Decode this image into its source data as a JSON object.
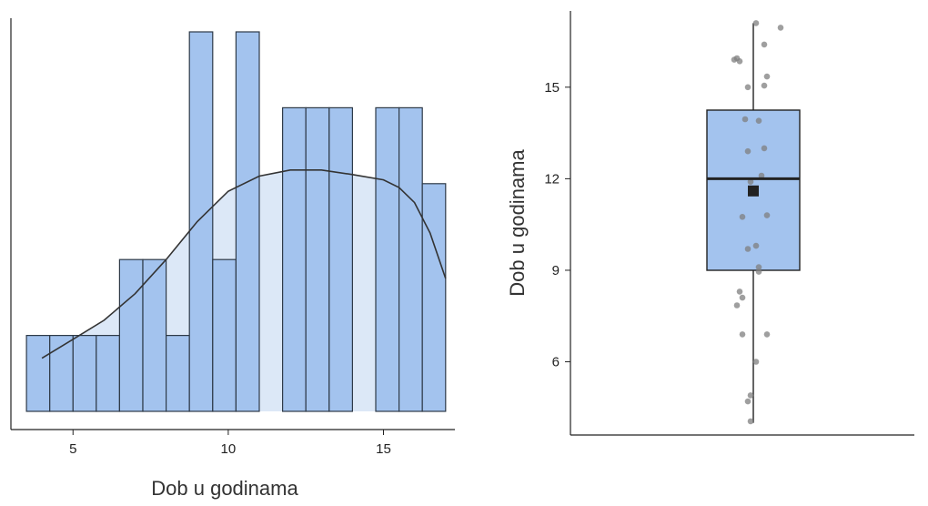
{
  "chart_data": [
    {
      "type": "bar",
      "subtype": "histogram_with_density",
      "xlabel": "Dob u godinama",
      "ylabel": "",
      "xlim": [
        3.0,
        17.3
      ],
      "ylim": [
        0,
        5
      ],
      "xticks": [
        5,
        10,
        15
      ],
      "grid": false,
      "bin_width": 0.75,
      "bins": [
        {
          "x0": 3.5,
          "x1": 4.25,
          "value": 1
        },
        {
          "x0": 4.25,
          "x1": 5.0,
          "value": 1
        },
        {
          "x0": 5.0,
          "x1": 5.75,
          "value": 1
        },
        {
          "x0": 5.75,
          "x1": 6.5,
          "value": 1
        },
        {
          "x0": 6.5,
          "x1": 7.25,
          "value": 2
        },
        {
          "x0": 7.25,
          "x1": 8.0,
          "value": 2
        },
        {
          "x0": 8.0,
          "x1": 8.75,
          "value": 1
        },
        {
          "x0": 8.75,
          "x1": 9.5,
          "value": 5
        },
        {
          "x0": 9.5,
          "x1": 10.25,
          "value": 2
        },
        {
          "x0": 10.25,
          "x1": 11.0,
          "value": 5
        },
        {
          "x0": 11.0,
          "x1": 11.75,
          "value": 0
        },
        {
          "x0": 11.75,
          "x1": 12.5,
          "value": 4
        },
        {
          "x0": 12.5,
          "x1": 13.25,
          "value": 4
        },
        {
          "x0": 13.25,
          "x1": 14.0,
          "value": 4
        },
        {
          "x0": 14.0,
          "x1": 14.75,
          "value": 0
        },
        {
          "x0": 14.75,
          "x1": 15.5,
          "value": 4
        },
        {
          "x0": 15.5,
          "x1": 16.25,
          "value": 4
        },
        {
          "x0": 16.25,
          "x1": 17.0,
          "value": 3
        }
      ],
      "density_curve": {
        "x": [
          4.0,
          5.0,
          6.0,
          7.0,
          8.0,
          9.0,
          10.0,
          11.0,
          12.0,
          13.0,
          14.0,
          15.0,
          15.5,
          16.0,
          16.5,
          17.0
        ],
        "y": [
          0.7,
          0.95,
          1.2,
          1.55,
          2.0,
          2.5,
          2.9,
          3.1,
          3.18,
          3.18,
          3.12,
          3.05,
          2.95,
          2.75,
          2.35,
          1.75
        ]
      },
      "colors": {
        "bar": "#a3c3ee",
        "bar_stroke": "#2e3a48",
        "density_fill": "#dce8f7",
        "density_line": "#333333"
      }
    },
    {
      "type": "box",
      "ylabel": "Dob u godinama",
      "xlabel": "",
      "ylim": [
        3.6,
        17.5
      ],
      "yticks": [
        6,
        9,
        12,
        15
      ],
      "grid": false,
      "box": {
        "whisker_low": 4.0,
        "q1": 9.0,
        "median": 12.0,
        "q3": 14.25,
        "whisker_high": 17.1,
        "mean": 11.6
      },
      "points": [
        {
          "jitter": -0.35,
          "y": 15.9
        },
        {
          "jitter": -0.3,
          "y": 15.95
        },
        {
          "jitter": -0.25,
          "y": 15.85
        },
        {
          "jitter": 0.05,
          "y": 17.1
        },
        {
          "jitter": 0.5,
          "y": 16.95
        },
        {
          "jitter": 0.2,
          "y": 16.4
        },
        {
          "jitter": 0.25,
          "y": 15.35
        },
        {
          "jitter": 0.2,
          "y": 15.05
        },
        {
          "jitter": -0.1,
          "y": 15.0
        },
        {
          "jitter": -0.15,
          "y": 13.95
        },
        {
          "jitter": 0.1,
          "y": 13.9
        },
        {
          "jitter": 0.2,
          "y": 13.0
        },
        {
          "jitter": -0.1,
          "y": 12.9
        },
        {
          "jitter": 0.15,
          "y": 12.1
        },
        {
          "jitter": -0.05,
          "y": 11.9
        },
        {
          "jitter": 0.25,
          "y": 10.8
        },
        {
          "jitter": -0.2,
          "y": 10.75
        },
        {
          "jitter": 0.05,
          "y": 9.8
        },
        {
          "jitter": -0.1,
          "y": 9.7
        },
        {
          "jitter": 0.1,
          "y": 9.1
        },
        {
          "jitter": 0.1,
          "y": 8.95
        },
        {
          "jitter": -0.25,
          "y": 8.3
        },
        {
          "jitter": -0.2,
          "y": 8.1
        },
        {
          "jitter": -0.3,
          "y": 7.85
        },
        {
          "jitter": -0.2,
          "y": 6.9
        },
        {
          "jitter": 0.25,
          "y": 6.9
        },
        {
          "jitter": 0.05,
          "y": 6.0
        },
        {
          "jitter": -0.05,
          "y": 4.9
        },
        {
          "jitter": -0.1,
          "y": 4.7
        },
        {
          "jitter": -0.05,
          "y": 4.05
        }
      ],
      "colors": {
        "box_fill": "#a3c3ee",
        "box_stroke": "#222222",
        "point": "#7f7f7f",
        "mean_marker": "#222222"
      }
    }
  ]
}
